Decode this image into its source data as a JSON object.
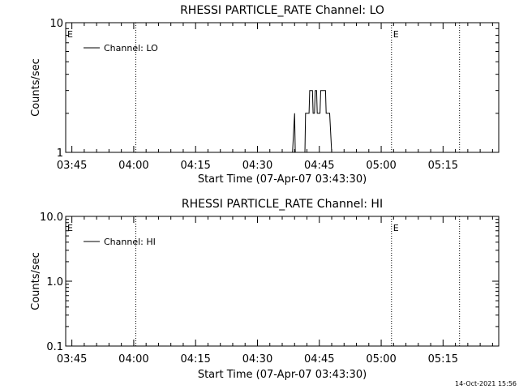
{
  "chart_data": [
    {
      "type": "line",
      "title": "RHESSI PARTICLE_RATE Channel: LO",
      "xlabel": "Start Time (07-Apr-07 03:43:30)",
      "ylabel": "Counts/sec",
      "y_scale": "log",
      "ylim": [
        1,
        10
      ],
      "y_ticks": [
        "1",
        "10"
      ],
      "xlim": [
        "03:43:30",
        "05:28:30"
      ],
      "x_ticks": [
        "03:45",
        "04:00",
        "04:15",
        "04:30",
        "04:45",
        "05:00",
        "05:15"
      ],
      "legend": {
        "position": "top-left",
        "entries": [
          "Channel: LO"
        ]
      },
      "grid": false,
      "markers": [
        {
          "time": "03:43:30",
          "text": "E"
        },
        {
          "time": "05:02:30",
          "text": "E"
        }
      ],
      "dotted_lines": [
        "04:00:30",
        "05:02:30",
        "05:19:00"
      ],
      "series": [
        {
          "name": "Channel: LO",
          "x": [
            "04:38:30",
            "04:39:00",
            "04:39:10",
            "04:40:00",
            "04:40:10",
            "04:41:30",
            "04:41:40",
            "04:42:30",
            "04:42:40",
            "04:43:20",
            "04:43:30",
            "04:43:50",
            "04:44:00",
            "04:44:20",
            "04:44:30",
            "04:45:10",
            "04:45:20",
            "04:46:30",
            "04:46:40",
            "04:47:30",
            "04:48:00"
          ],
          "values": [
            1,
            2,
            1,
            1,
            1,
            1,
            2,
            2,
            3,
            3,
            2,
            2,
            3,
            3,
            2,
            2,
            3,
            3,
            2,
            2,
            1
          ]
        }
      ]
    },
    {
      "type": "line",
      "title": "RHESSI PARTICLE_RATE Channel: HI",
      "xlabel": "Start Time (07-Apr-07 03:43:30)",
      "ylabel": "Counts/sec",
      "y_scale": "log",
      "ylim": [
        0.1,
        10
      ],
      "y_ticks": [
        "0.1",
        "1.0",
        "10.0"
      ],
      "xlim": [
        "03:43:30",
        "05:28:30"
      ],
      "x_ticks": [
        "03:45",
        "04:00",
        "04:15",
        "04:30",
        "04:45",
        "05:00",
        "05:15"
      ],
      "legend": {
        "position": "top-left",
        "entries": [
          "Channel: HI"
        ]
      },
      "grid": false,
      "markers": [
        {
          "time": "03:43:30",
          "text": "E"
        },
        {
          "time": "05:02:30",
          "text": "E"
        }
      ],
      "dotted_lines": [
        "04:00:30",
        "05:02:30",
        "05:19:00"
      ],
      "series": [
        {
          "name": "Channel: HI",
          "x": [],
          "values": []
        }
      ]
    }
  ],
  "footer": {
    "timestamp": "14-Oct-2021 15:56"
  },
  "colors": {
    "background": "#ffffff",
    "foreground": "#000000"
  }
}
